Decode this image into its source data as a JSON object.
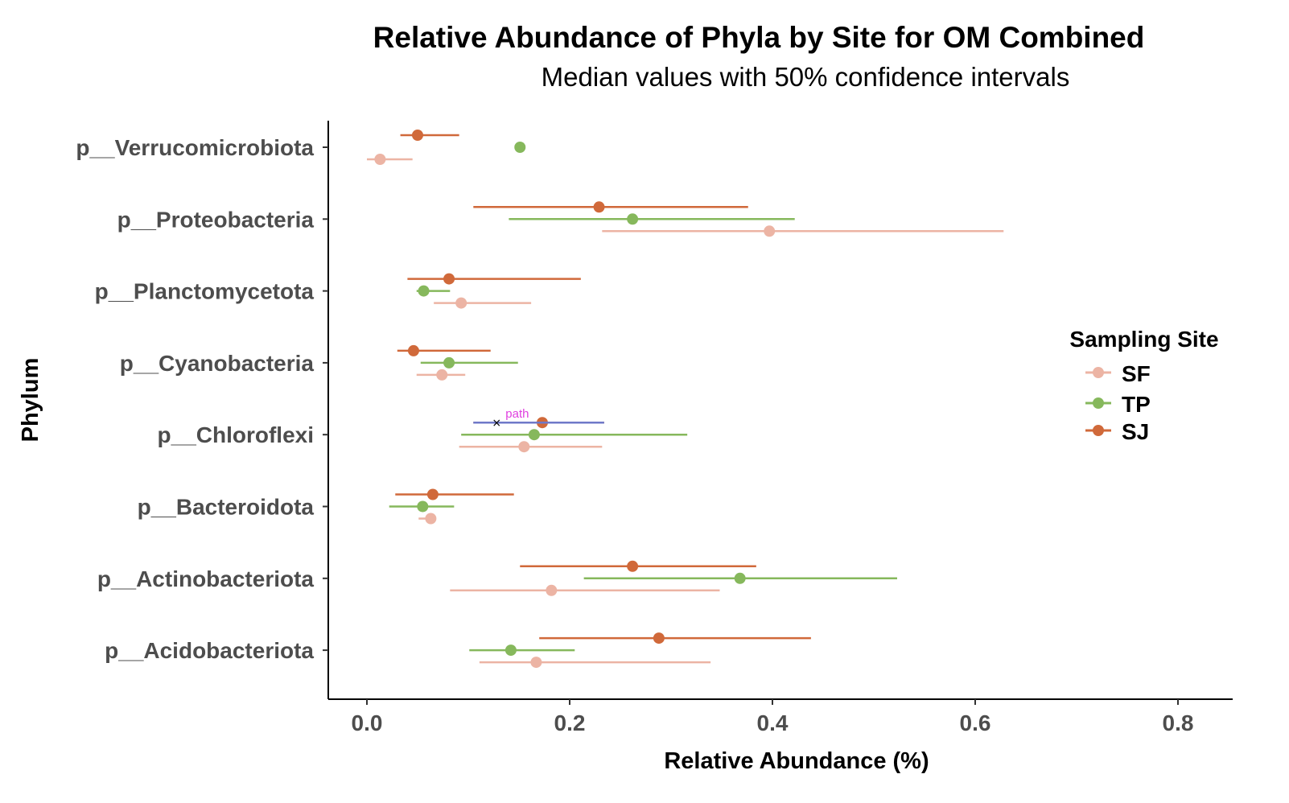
{
  "chart_data": {
    "type": "scatter",
    "title": "Relative Abundance of Phyla by Site for OM Combined",
    "subtitle": "Median values with 50% confidence intervals",
    "xlabel": "Relative Abundance (%)",
    "ylabel": "Phylum",
    "xlim": [
      -0.04,
      0.85
    ],
    "x_ticks": [
      0.0,
      0.2,
      0.4,
      0.6,
      0.8
    ],
    "x_tick_labels": [
      "0.0",
      "0.2",
      "0.4",
      "0.6",
      "0.8"
    ],
    "categories": [
      "p__Verrucomicrobiota",
      "p__Proteobacteria",
      "p__Planctomycetota",
      "p__Cyanobacteria",
      "p__Chloroflexi",
      "p__Bacteroidota",
      "p__Actinobacteriota",
      "p__Acidobacteriota"
    ],
    "grid": false,
    "legend": {
      "title": "Sampling Site",
      "position": "right"
    },
    "series": [
      {
        "name": "SF",
        "color": "#ecb4a4",
        "median": [
          0.013,
          0.397,
          0.093,
          0.074,
          0.155,
          0.063,
          0.182,
          0.167
        ],
        "lower": [
          0.0,
          0.232,
          0.066,
          0.049,
          0.091,
          0.051,
          0.082,
          0.111
        ],
        "upper": [
          0.045,
          0.628,
          0.162,
          0.097,
          0.232,
          0.068,
          0.348,
          0.339
        ]
      },
      {
        "name": "TP",
        "color": "#86b85c",
        "median": [
          0.151,
          0.262,
          0.056,
          0.081,
          0.165,
          0.055,
          0.368,
          0.142
        ],
        "lower": [
          null,
          0.14,
          0.049,
          0.053,
          0.093,
          0.022,
          0.214,
          0.101
        ],
        "upper": [
          null,
          0.422,
          0.082,
          0.149,
          0.316,
          0.086,
          0.523,
          0.205
        ]
      },
      {
        "name": "SJ",
        "color": "#d0693a",
        "median": [
          0.05,
          0.229,
          0.081,
          0.046,
          0.173,
          0.065,
          0.262,
          0.288
        ],
        "lower": [
          0.033,
          0.105,
          0.04,
          0.03,
          0.105,
          0.028,
          0.151,
          0.17
        ],
        "upper": [
          0.091,
          0.376,
          0.211,
          0.122,
          0.234,
          0.145,
          0.384,
          0.438
        ]
      }
    ],
    "annotations": [
      {
        "text": "path",
        "text_color": "#e040e0",
        "line_color": "#6f79c8",
        "category": "p__Chloroflexi",
        "x_start": 0.105,
        "x_end": 0.234,
        "marker_x": 0.128,
        "marker_symbol": "×"
      }
    ]
  }
}
